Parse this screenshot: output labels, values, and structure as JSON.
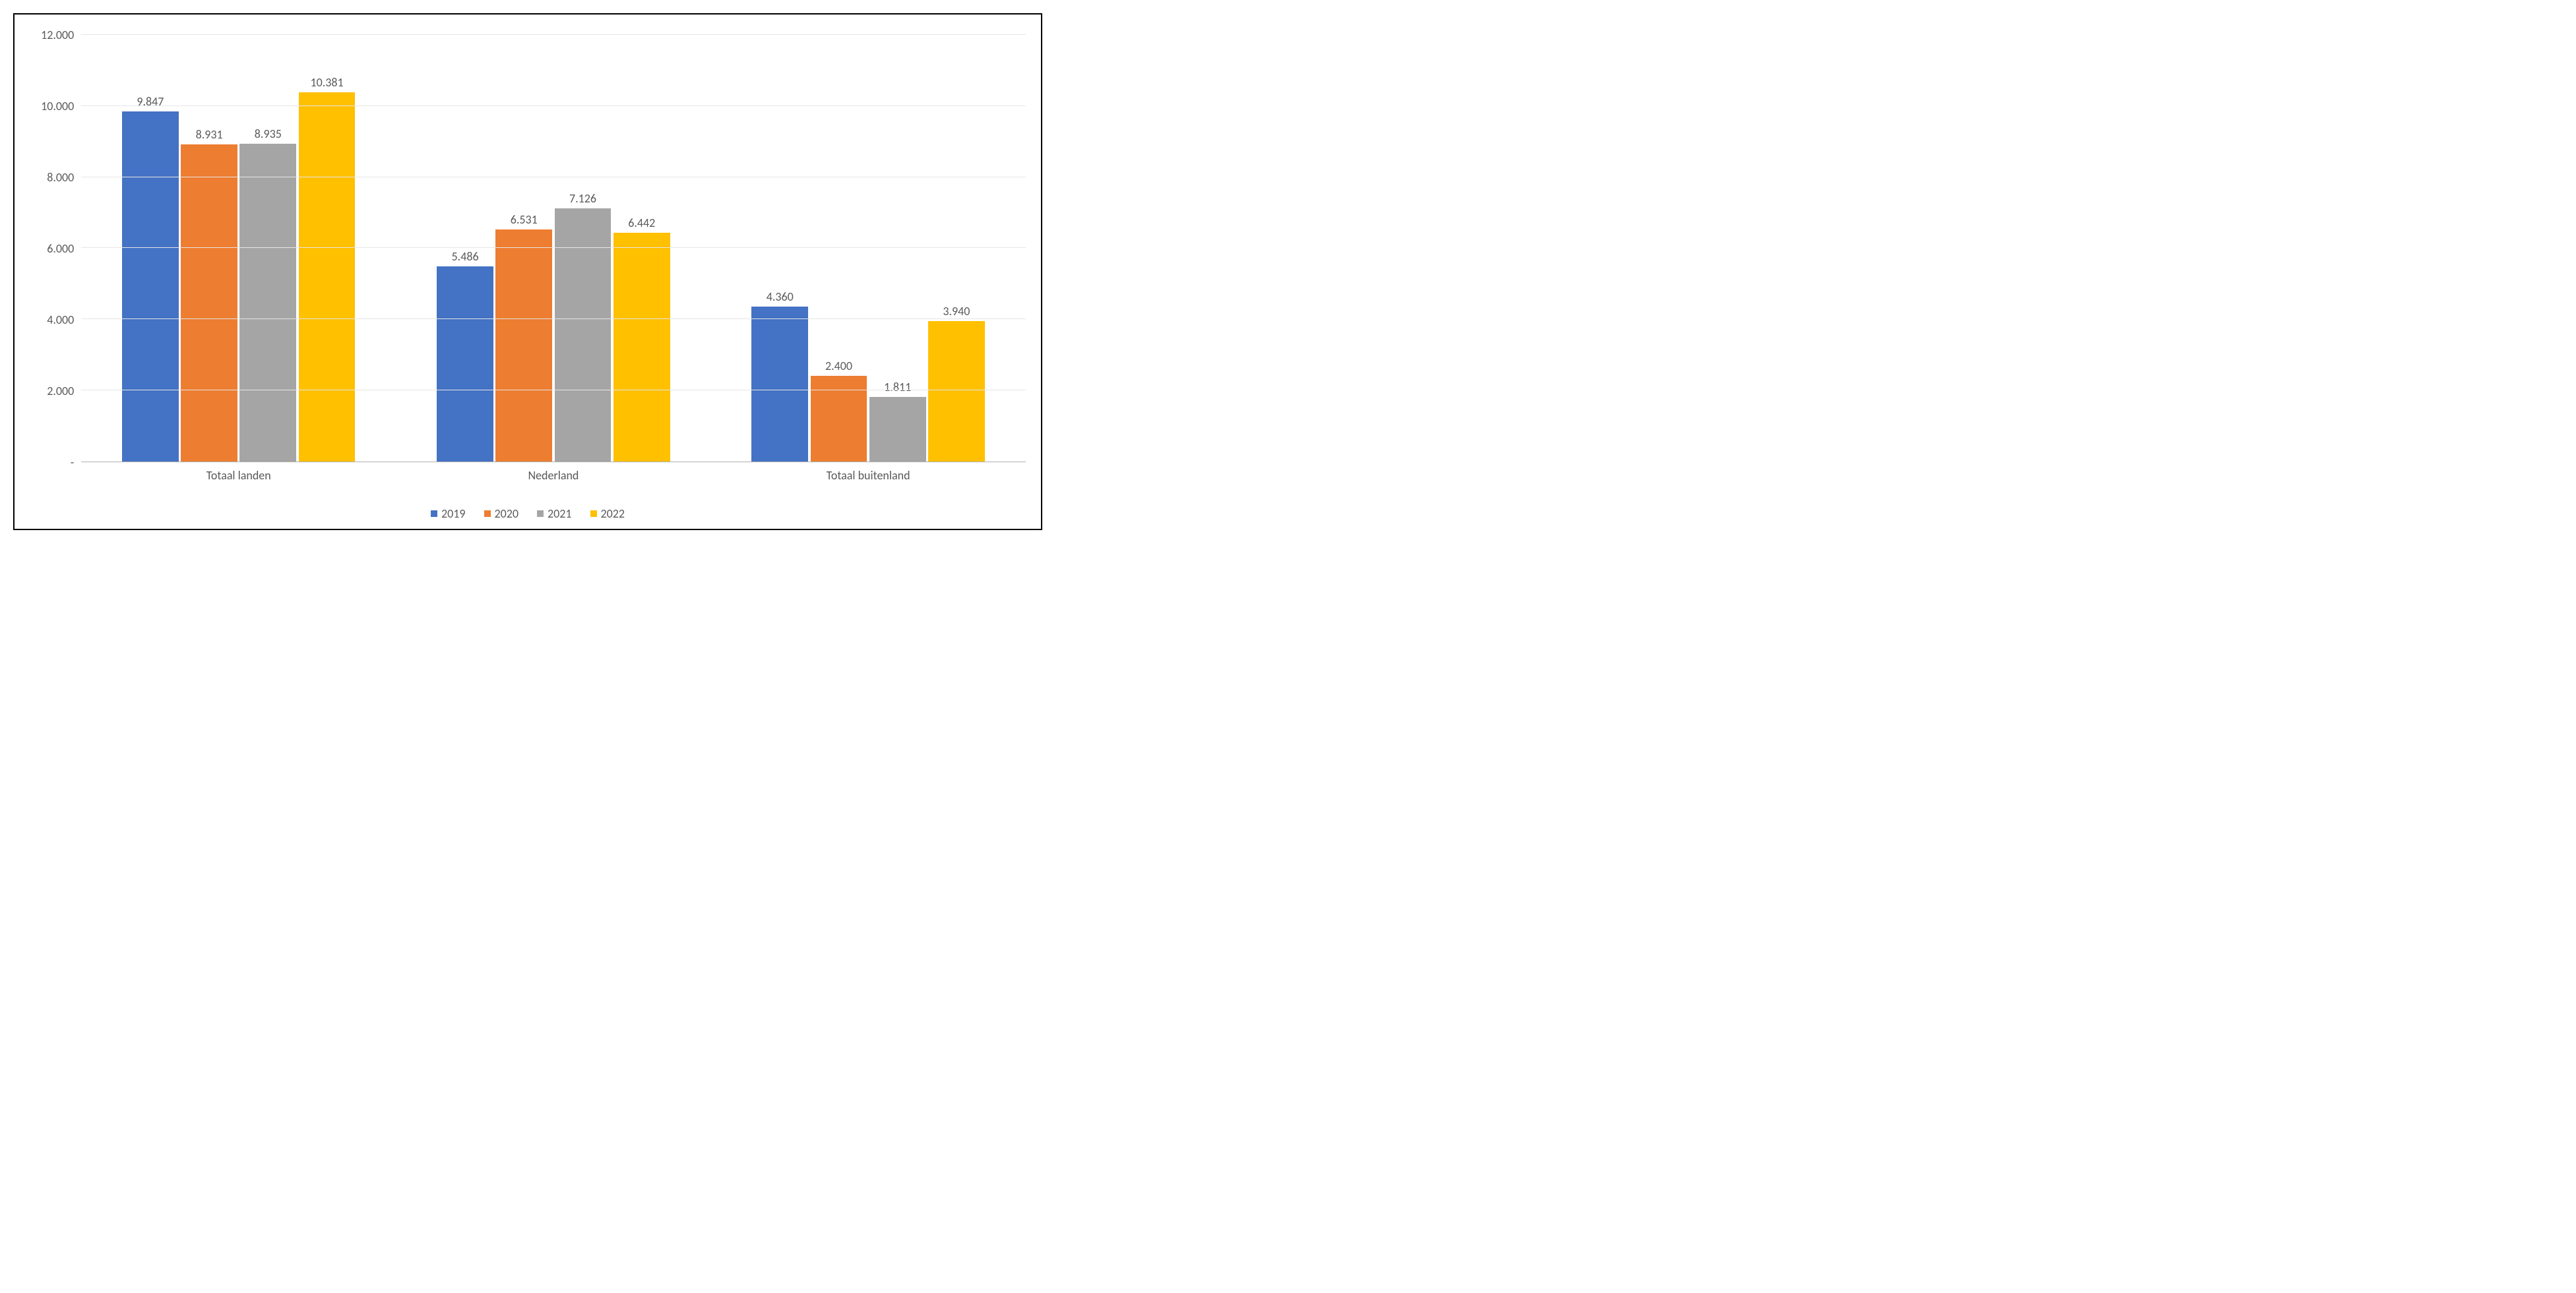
{
  "chart": {
    "type": "bar",
    "ylim": [
      0,
      12000
    ],
    "yticks": [
      0,
      2000,
      4000,
      6000,
      8000,
      10000,
      12000
    ],
    "ytick_labels": [
      "-",
      "2.000",
      "4.000",
      "6.000",
      "8.000",
      "10.000",
      "12.000"
    ],
    "grid_color": "#e6e6e6",
    "axis_color": "#b0b0b0",
    "background_color": "#ffffff",
    "border_color": "#000000",
    "label_fontsize": 18,
    "label_color": "#595959",
    "categories": [
      "Totaal landen",
      "Nederland",
      "Totaal buitenland"
    ],
    "series": [
      {
        "name": "2019",
        "color": "#4472c4",
        "values": [
          9847,
          5486,
          4360
        ],
        "labels": [
          "9.847",
          "5.486",
          "4.360"
        ]
      },
      {
        "name": "2020",
        "color": "#ed7d31",
        "values": [
          8931,
          6531,
          2400
        ],
        "labels": [
          "8.931",
          "6.531",
          "2.400"
        ]
      },
      {
        "name": "2021",
        "color": "#a5a5a5",
        "values": [
          8935,
          7126,
          1811
        ],
        "labels": [
          "8.935",
          "7.126",
          "1.811"
        ]
      },
      {
        "name": "2022",
        "color": "#ffc000",
        "values": [
          10381,
          6442,
          3940
        ],
        "labels": [
          "10.381",
          "6.442",
          "3.940"
        ]
      }
    ],
    "bar_group_width": 0.72,
    "bar_gap": 0.007
  }
}
